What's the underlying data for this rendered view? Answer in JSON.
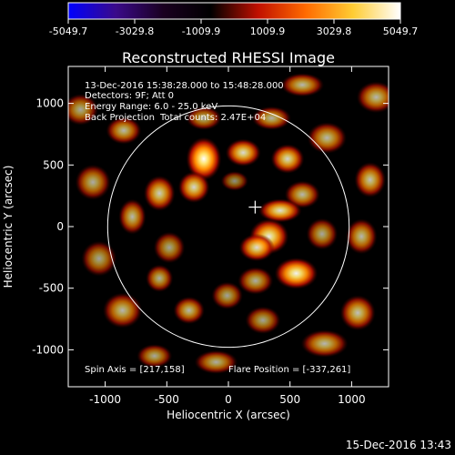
{
  "colorbar": {
    "tick_labels": [
      "-5049.7",
      "-3029.8",
      "-1009.9",
      "1009.9",
      "3029.8",
      "5049.7"
    ],
    "tick_values": [
      -5049.7,
      -3029.8,
      -1009.9,
      1009.9,
      3029.8,
      5049.7
    ],
    "range": [
      -5049.7,
      5049.7
    ],
    "colors": [
      "#0000ff",
      "#3a0a8a",
      "#1a0020",
      "#000000",
      "#c01000",
      "#ff6a00",
      "#ffcc33",
      "#ffffff"
    ]
  },
  "header": {
    "date_line": "13-Dec-2016 15:38:28.000 to 15:48:28.000",
    "detectors_line": "Detectors: 9F; Att 0",
    "energy_line": "Energy Range: 6.0 - 25.0 keV",
    "method_line": "Back Projection",
    "counts_line": "Total counts: 2.47E+04"
  },
  "footer": {
    "spin_axis": "Spin Axis = [217,158]",
    "flare_position": "Flare Position = [-337,261]",
    "timestamp": "15-Dec-2016 13:43"
  },
  "chart_data": {
    "type": "heatmap",
    "title": "Reconstructed RHESSI Image",
    "xlabel": "Heliocentric X (arcsec)",
    "ylabel": "Heliocentric Y (arcsec)",
    "xlim": [
      -1300,
      1300
    ],
    "ylim": [
      -1300,
      1300
    ],
    "x_ticks": [
      -1000,
      -500,
      0,
      500,
      1000
    ],
    "x_tick_labels": [
      "-1000",
      "-500",
      "0",
      "500",
      "1000"
    ],
    "y_ticks": [
      -1000,
      -500,
      0,
      500,
      1000
    ],
    "y_tick_labels": [
      "-1000",
      "-500",
      "0",
      "500",
      "1000"
    ],
    "solar_limb": {
      "center": [
        0,
        0
      ],
      "radius": 980
    },
    "cross_marker": [
      217,
      158
    ],
    "blobs": [
      {
        "x": -200,
        "y": 550,
        "v": 5049.7,
        "rx": 90,
        "ry": 110
      },
      {
        "x": -280,
        "y": 320,
        "v": 4200,
        "rx": 80,
        "ry": 80
      },
      {
        "x": -560,
        "y": 270,
        "v": 4000,
        "rx": 80,
        "ry": 90
      },
      {
        "x": 120,
        "y": 600,
        "v": 4300,
        "rx": 90,
        "ry": 70
      },
      {
        "x": 480,
        "y": 550,
        "v": 4200,
        "rx": 85,
        "ry": 75
      },
      {
        "x": 600,
        "y": 260,
        "v": 3600,
        "rx": 90,
        "ry": 70
      },
      {
        "x": 420,
        "y": 130,
        "v": 4400,
        "rx": 110,
        "ry": 60
      },
      {
        "x": 330,
        "y": -80,
        "v": 4600,
        "rx": 100,
        "ry": 90
      },
      {
        "x": 230,
        "y": -170,
        "v": 4300,
        "rx": 90,
        "ry": 70
      },
      {
        "x": 550,
        "y": -380,
        "v": 4800,
        "rx": 110,
        "ry": 80
      },
      {
        "x": -780,
        "y": 80,
        "v": 3600,
        "rx": 70,
        "ry": 90
      },
      {
        "x": -480,
        "y": -170,
        "v": 3200,
        "rx": 80,
        "ry": 80
      },
      {
        "x": -560,
        "y": -420,
        "v": 3400,
        "rx": 70,
        "ry": 70
      },
      {
        "x": -320,
        "y": -680,
        "v": 3600,
        "rx": 80,
        "ry": 70
      },
      {
        "x": -10,
        "y": -560,
        "v": 3200,
        "rx": 80,
        "ry": 70
      },
      {
        "x": 220,
        "y": -440,
        "v": 3400,
        "rx": 90,
        "ry": 70
      },
      {
        "x": 280,
        "y": -760,
        "v": 3200,
        "rx": 90,
        "ry": 70
      },
      {
        "x": 760,
        "y": -60,
        "v": 3300,
        "rx": 80,
        "ry": 80
      },
      {
        "x": -860,
        "y": -680,
        "v": 3600,
        "rx": 100,
        "ry": 90
      },
      {
        "x": -1100,
        "y": 360,
        "v": 3400,
        "rx": 90,
        "ry": 90
      },
      {
        "x": -1050,
        "y": -260,
        "v": 3200,
        "rx": 90,
        "ry": 90
      },
      {
        "x": -850,
        "y": 780,
        "v": 3600,
        "rx": 90,
        "ry": 70
      },
      {
        "x": -200,
        "y": 880,
        "v": 3300,
        "rx": 90,
        "ry": 60
      },
      {
        "x": 350,
        "y": 880,
        "v": 3500,
        "rx": 100,
        "ry": 60
      },
      {
        "x": 800,
        "y": 720,
        "v": 3600,
        "rx": 100,
        "ry": 80
      },
      {
        "x": 1150,
        "y": 380,
        "v": 3800,
        "rx": 80,
        "ry": 90
      },
      {
        "x": 1080,
        "y": -80,
        "v": 3600,
        "rx": 80,
        "ry": 90
      },
      {
        "x": 1050,
        "y": -700,
        "v": 3800,
        "rx": 90,
        "ry": 90
      },
      {
        "x": 780,
        "y": -950,
        "v": 3600,
        "rx": 120,
        "ry": 70
      },
      {
        "x": -100,
        "y": -1100,
        "v": 3400,
        "rx": 110,
        "ry": 60
      },
      {
        "x": -600,
        "y": -1050,
        "v": 3300,
        "rx": 90,
        "ry": 60
      },
      {
        "x": 1200,
        "y": 1050,
        "v": 3600,
        "rx": 100,
        "ry": 80
      },
      {
        "x": -1200,
        "y": 950,
        "v": 3300,
        "rx": 90,
        "ry": 80
      },
      {
        "x": 600,
        "y": 1150,
        "v": 3600,
        "rx": 110,
        "ry": 60
      },
      {
        "x": 50,
        "y": 370,
        "v": 2800,
        "rx": 70,
        "ry": 50
      }
    ]
  }
}
